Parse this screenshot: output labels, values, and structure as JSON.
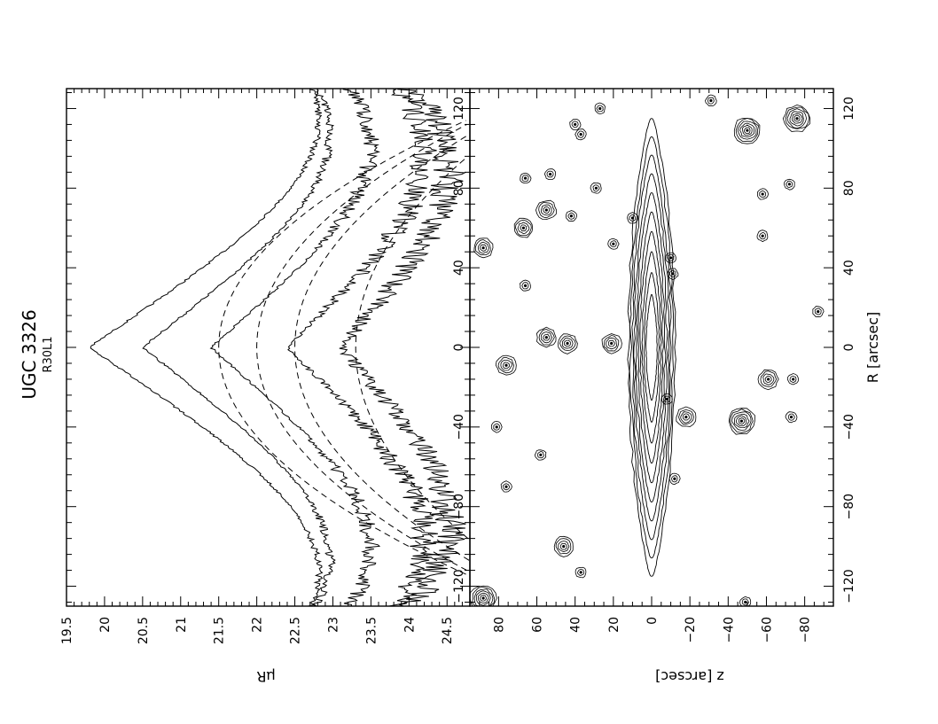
{
  "figure": {
    "galaxy": "UGC 3326",
    "band_label": "R30L1"
  },
  "chart_data": [
    {
      "type": "line",
      "panel": "profile",
      "title": "",
      "xlabel": "",
      "ylabel": "μR",
      "xlim": [
        -130,
        130
      ],
      "ylim": [
        19.5,
        24.8
      ],
      "y_inverted": true,
      "x_ticks": [
        -120,
        -80,
        -40,
        0,
        40,
        80,
        120
      ],
      "y_ticks": [
        19.5,
        20,
        20.5,
        21,
        21.5,
        22,
        22.5,
        23,
        23.5,
        24,
        24.5
      ],
      "x_tick_labels": [
        "−120",
        "−80",
        "−40",
        "0",
        "40",
        "80",
        "120"
      ],
      "y_tick_labels": [
        "19.5",
        "20",
        "20.5",
        "21",
        "21.5",
        "22",
        "22.5",
        "23",
        "23.5",
        "24",
        "24.5"
      ],
      "observed_profiles": [
        {
          "center": 19.8,
          "slope": 0.0375
        },
        {
          "center": 20.5,
          "slope": 0.0325
        },
        {
          "center": 21.4,
          "slope": 0.029
        },
        {
          "center": 22.4,
          "slope": 0.026
        },
        {
          "center": 23.1,
          "slope": 0.022
        }
      ],
      "model_profiles": [
        {
          "center": 21.5,
          "curvature": 0.00025
        },
        {
          "center": 22.0,
          "curvature": 0.00022
        },
        {
          "center": 22.5,
          "curvature": 0.0002
        },
        {
          "center": 23.3,
          "curvature": 0.00016
        }
      ]
    },
    {
      "type": "contour",
      "panel": "image",
      "title": "",
      "xlabel": "R [arcsec]",
      "ylabel": "z [arcsec]",
      "xlim": [
        -130,
        130
      ],
      "ylim": [
        -95,
        95
      ],
      "x_ticks": [
        -120,
        -80,
        -40,
        0,
        40,
        80,
        120
      ],
      "y_ticks": [
        -80,
        -60,
        -40,
        -20,
        0,
        20,
        40,
        60,
        80
      ],
      "x_tick_labels": [
        "−120",
        "−80",
        "−40",
        "0",
        "40",
        "80",
        "120"
      ],
      "y_tick_labels": [
        "−80",
        "−60",
        "−40",
        "−20",
        "0",
        "20",
        "40",
        "60",
        "80"
      ],
      "galaxy_disk": {
        "half_length": 115,
        "max_half_thickness": 12,
        "n_contours": 10
      },
      "stars": [
        {
          "R": 115,
          "z": -76,
          "size": 3
        },
        {
          "R": 109,
          "z": -50,
          "size": 3
        },
        {
          "R": 124,
          "z": -31,
          "size": 1
        },
        {
          "R": 112,
          "z": 40,
          "size": 1
        },
        {
          "R": 107,
          "z": 37,
          "size": 1
        },
        {
          "R": 120,
          "z": 27,
          "size": 1
        },
        {
          "R": 85,
          "z": 66,
          "size": 1
        },
        {
          "R": 87,
          "z": 53,
          "size": 1
        },
        {
          "R": 80,
          "z": 29,
          "size": 1
        },
        {
          "R": 77,
          "z": -58,
          "size": 1
        },
        {
          "R": 82,
          "z": -72,
          "size": 1
        },
        {
          "R": 69,
          "z": 55,
          "size": 2
        },
        {
          "R": 60,
          "z": 67,
          "size": 2
        },
        {
          "R": 66,
          "z": 42,
          "size": 1
        },
        {
          "R": 65,
          "z": 10,
          "size": 1
        },
        {
          "R": 56,
          "z": -58,
          "size": 1
        },
        {
          "R": 50,
          "z": 88,
          "size": 2
        },
        {
          "R": 52,
          "z": 20,
          "size": 1
        },
        {
          "R": 45,
          "z": -10,
          "size": 1
        },
        {
          "R": 37,
          "z": -11,
          "size": 1
        },
        {
          "R": 31,
          "z": 66,
          "size": 1
        },
        {
          "R": 18,
          "z": -87,
          "size": 1
        },
        {
          "R": 5,
          "z": 55,
          "size": 2
        },
        {
          "R": 2,
          "z": 44,
          "size": 2
        },
        {
          "R": 2,
          "z": 21,
          "size": 2
        },
        {
          "R": -9,
          "z": 76,
          "size": 2
        },
        {
          "R": -16,
          "z": -61,
          "size": 2
        },
        {
          "R": -16,
          "z": -74,
          "size": 1
        },
        {
          "R": -26,
          "z": -8,
          "size": 1
        },
        {
          "R": -35,
          "z": -18,
          "size": 2
        },
        {
          "R": -37,
          "z": -47,
          "size": 3
        },
        {
          "R": -35,
          "z": -73,
          "size": 1
        },
        {
          "R": -40,
          "z": 81,
          "size": 1
        },
        {
          "R": -54,
          "z": 58,
          "size": 1
        },
        {
          "R": -66,
          "z": -12,
          "size": 1
        },
        {
          "R": -70,
          "z": 76,
          "size": 1
        },
        {
          "R": -100,
          "z": 46,
          "size": 2
        },
        {
          "R": -113,
          "z": 37,
          "size": 1
        },
        {
          "R": -126,
          "z": 88,
          "size": 3
        },
        {
          "R": -128,
          "z": -49,
          "size": 1
        }
      ]
    }
  ]
}
